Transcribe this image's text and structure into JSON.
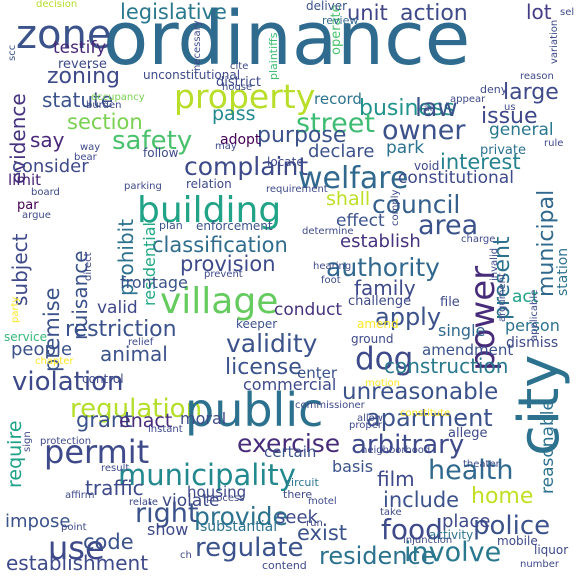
{
  "words": [
    {
      "text": "ordinance",
      "color": "#2f6b8e"
    },
    {
      "text": "zone",
      "color": "#3b528b"
    },
    {
      "text": "legislative",
      "color": "#2a788e"
    },
    {
      "text": "decision",
      "color": "#b5de2b"
    },
    {
      "text": "testify",
      "color": "#482878"
    },
    {
      "text": "zoning",
      "color": "#3e4a89"
    },
    {
      "text": "action",
      "color": "#3e4a89"
    },
    {
      "text": "unit",
      "color": "#414487"
    },
    {
      "text": "lot",
      "color": "#433e85"
    },
    {
      "text": "city",
      "color": "#2c728e"
    },
    {
      "text": "property",
      "color": "#b8de29"
    },
    {
      "text": "business",
      "color": "#21918c"
    },
    {
      "text": "evidence",
      "color": "#46327e"
    },
    {
      "text": "statute",
      "color": "#3b528b"
    },
    {
      "text": "record",
      "color": "#2c728e"
    },
    {
      "text": "law",
      "color": "#3b528b"
    },
    {
      "text": "large",
      "color": "#3e4a89"
    },
    {
      "text": "section",
      "color": "#7ad151"
    },
    {
      "text": "street",
      "color": "#3fbc73"
    },
    {
      "text": "issue",
      "color": "#3f4889"
    },
    {
      "text": "owner",
      "color": "#3b528b"
    },
    {
      "text": "safety",
      "color": "#4ac16d"
    },
    {
      "text": "purpose",
      "color": "#3b528b"
    },
    {
      "text": "general",
      "color": "#2a788e"
    },
    {
      "text": "say",
      "color": "#482878"
    },
    {
      "text": "pass",
      "color": "#23898e"
    },
    {
      "text": "adopt",
      "color": "#440154"
    },
    {
      "text": "park",
      "color": "#2c728e"
    },
    {
      "text": "declare",
      "color": "#3b528b"
    },
    {
      "text": "complaint",
      "color": "#3e4a89"
    },
    {
      "text": "welfare",
      "color": "#31688e"
    },
    {
      "text": "interest",
      "color": "#26828e"
    },
    {
      "text": "consider",
      "color": "#3e4a89"
    },
    {
      "text": "building",
      "color": "#20a386"
    },
    {
      "text": "shall",
      "color": "#bddf26"
    },
    {
      "text": "constitutional",
      "color": "#3e4a89"
    },
    {
      "text": "council",
      "color": "#355f8d"
    },
    {
      "text": "limit",
      "color": "#482475"
    },
    {
      "text": "par",
      "color": "#440154"
    },
    {
      "text": "area",
      "color": "#3b528b"
    },
    {
      "text": "effect",
      "color": "#3b528b"
    },
    {
      "text": "establish",
      "color": "#46327e"
    },
    {
      "text": "classification",
      "color": "#2f6c8e"
    },
    {
      "text": "prohibit",
      "color": "#2c728e"
    },
    {
      "text": "subject",
      "color": "#3e4a89"
    },
    {
      "text": "residential",
      "color": "#22a884"
    },
    {
      "text": "provision",
      "color": "#3e4a89"
    },
    {
      "text": "authority",
      "color": "#31688e"
    },
    {
      "text": "village",
      "color": "#65cb5e"
    },
    {
      "text": "nuisance",
      "color": "#3b528b"
    },
    {
      "text": "premise",
      "color": "#3b528b"
    },
    {
      "text": "municipal",
      "color": "#31688e"
    },
    {
      "text": "power",
      "color": "#472c7a"
    },
    {
      "text": "present",
      "color": "#2c728e"
    },
    {
      "text": "family",
      "color": "#3e4a89"
    },
    {
      "text": "conduct",
      "color": "#46327e"
    },
    {
      "text": "valid",
      "color": "#3f4889"
    },
    {
      "text": "restriction",
      "color": "#3b528b"
    },
    {
      "text": "apply",
      "color": "#3b528b"
    },
    {
      "text": "validity",
      "color": "#3b528b"
    },
    {
      "text": "people",
      "color": "#3b528b"
    },
    {
      "text": "animal",
      "color": "#3b528b"
    },
    {
      "text": "dog",
      "color": "#3e4a89"
    },
    {
      "text": "construction",
      "color": "#2a788e"
    },
    {
      "text": "license",
      "color": "#3b528b"
    },
    {
      "text": "violation",
      "color": "#3e4a89"
    },
    {
      "text": "regulation",
      "color": "#b5de2b"
    },
    {
      "text": "public",
      "color": "#2c728e"
    },
    {
      "text": "unreasonable",
      "color": "#3b528b"
    },
    {
      "text": "apartment",
      "color": "#3b528b"
    },
    {
      "text": "permit",
      "color": "#3e4a89"
    },
    {
      "text": "exercise",
      "color": "#472c7a"
    },
    {
      "text": "arbitrary",
      "color": "#3e4a89"
    },
    {
      "text": "health",
      "color": "#31688e"
    },
    {
      "text": "municipality",
      "color": "#23898e"
    },
    {
      "text": "require",
      "color": "#1fa187"
    },
    {
      "text": "grant",
      "color": "#3b528b"
    },
    {
      "text": "enact",
      "color": "#472c7a"
    },
    {
      "text": "traffic",
      "color": "#3e4a89"
    },
    {
      "text": "right",
      "color": "#3b528b"
    },
    {
      "text": "provide",
      "color": "#2c728e"
    },
    {
      "text": "home",
      "color": "#c2df23"
    },
    {
      "text": "include",
      "color": "#3b528b"
    },
    {
      "text": "police",
      "color": "#3b528b"
    },
    {
      "text": "food",
      "color": "#3e4a89"
    },
    {
      "text": "film",
      "color": "#3e4a89"
    },
    {
      "text": "regulate",
      "color": "#3b528b"
    },
    {
      "text": "use",
      "color": "#3e4a89"
    },
    {
      "text": "code",
      "color": "#3b528b"
    },
    {
      "text": "impose",
      "color": "#3b528b"
    },
    {
      "text": "residence",
      "color": "#2c728e"
    },
    {
      "text": "involve",
      "color": "#2a788e"
    },
    {
      "text": "place",
      "color": "#3e4a89"
    },
    {
      "text": "establishment",
      "color": "#3e4a89"
    },
    {
      "text": "exist",
      "color": "#3b528b"
    },
    {
      "text": "seek",
      "color": "#3e4a89"
    },
    {
      "text": "reasonable",
      "color": "#2c728e"
    },
    {
      "text": "commercial",
      "color": "#3e4a89"
    },
    {
      "text": "person",
      "color": "#2c728e"
    },
    {
      "text": "single",
      "color": "#31688e"
    },
    {
      "text": "housing",
      "color": "#3e4a89"
    },
    {
      "text": "moral",
      "color": "#3e4a89"
    },
    {
      "text": "certain",
      "color": "#3b528b"
    },
    {
      "text": "basis",
      "color": "#3b528b"
    },
    {
      "text": "show",
      "color": "#3e4a89"
    },
    {
      "text": "substantial",
      "color": "#2c728e"
    },
    {
      "text": "violate",
      "color": "#3e4a89"
    },
    {
      "text": "frontage",
      "color": "#3b528b"
    },
    {
      "text": "station",
      "color": "#2c728e"
    },
    {
      "text": "act",
      "color": "#1fa187"
    },
    {
      "text": "amendment",
      "color": "#3b528b"
    },
    {
      "text": "ground",
      "color": "#3e4a89"
    },
    {
      "text": "enter",
      "color": "#3b528b"
    },
    {
      "text": "control",
      "color": "#3e4a89"
    },
    {
      "text": "relation",
      "color": "#3e4a89"
    },
    {
      "text": "enforcement",
      "color": "#3b528b"
    },
    {
      "text": "plan",
      "color": "#3b528b"
    },
    {
      "text": "district",
      "color": "#3e4a89"
    },
    {
      "text": "unconstitutional",
      "color": "#3e4a89"
    },
    {
      "text": "follow",
      "color": "#3e4a89"
    },
    {
      "text": "locate",
      "color": "#3e4a89"
    },
    {
      "text": "private",
      "color": "#2c728e"
    },
    {
      "text": "void",
      "color": "#3e4a89"
    },
    {
      "text": "challenge",
      "color": "#3e4a89"
    },
    {
      "text": "file",
      "color": "#3e4a89"
    },
    {
      "text": "dismiss",
      "color": "#3e4a89"
    },
    {
      "text": "keeper",
      "color": "#3b528b"
    },
    {
      "text": "amend",
      "color": "#fde725"
    },
    {
      "text": "service",
      "color": "#35b779"
    },
    {
      "text": "allege",
      "color": "#3e4a89"
    },
    {
      "text": "circuit",
      "color": "#2c728e"
    },
    {
      "text": "take",
      "color": "#3e4a89"
    },
    {
      "text": "mobile",
      "color": "#3e4a89"
    },
    {
      "text": "activity",
      "color": "#2c728e"
    },
    {
      "text": "operate",
      "color": "#4ac16d"
    },
    {
      "text": "deliver",
      "color": "#3b528b"
    },
    {
      "text": "review",
      "color": "#31688e"
    },
    {
      "text": "cite",
      "color": "#3e4a89"
    },
    {
      "text": "house",
      "color": "#3e4a89"
    },
    {
      "text": "reverse",
      "color": "#3e4a89"
    },
    {
      "text": "burden",
      "color": "#3e4a89"
    },
    {
      "text": "occupancy",
      "color": "#7ad151"
    },
    {
      "text": "reason",
      "color": "#3e4a89"
    },
    {
      "text": "deny",
      "color": "#3e4a89"
    },
    {
      "text": "appear",
      "color": "#3e4a89"
    },
    {
      "text": "fail",
      "color": "#3e4a89"
    },
    {
      "text": "necessary",
      "color": "#3e4a89"
    },
    {
      "text": "plaintiffs",
      "color": "#3fbc73"
    },
    {
      "text": "variation",
      "color": "#3e4a89"
    },
    {
      "text": "sel",
      "color": "#3e4a89"
    },
    {
      "text": "scc",
      "color": "#3b528b"
    },
    {
      "text": "way",
      "color": "#3e4a89"
    },
    {
      "text": "bear",
      "color": "#3e4a89"
    },
    {
      "text": "board",
      "color": "#3e4a89"
    },
    {
      "text": "argue",
      "color": "#3e4a89"
    },
    {
      "text": "parking",
      "color": "#3e4a89"
    },
    {
      "text": "requirement",
      "color": "#3e4a89"
    },
    {
      "text": "determine",
      "color": "#3e4a89"
    },
    {
      "text": "hearing",
      "color": "#3e4a89"
    },
    {
      "text": "foot",
      "color": "#3e4a89"
    },
    {
      "text": "charge",
      "color": "#3e4a89"
    },
    {
      "text": "argument",
      "color": "#3e4a89"
    },
    {
      "text": "invalid",
      "color": "#3e4a89"
    },
    {
      "text": "applicable",
      "color": "#3e4a89"
    },
    {
      "text": "motion",
      "color": "#fde725"
    },
    {
      "text": "commissioner",
      "color": "#3e4a89"
    },
    {
      "text": "proper",
      "color": "#3e4a89"
    },
    {
      "text": "neighborhood",
      "color": "#3e4a89"
    },
    {
      "text": "constitute",
      "color": "#fde725"
    },
    {
      "text": "theater",
      "color": "#3e4a89"
    },
    {
      "text": "protection",
      "color": "#3e4a89"
    },
    {
      "text": "instant",
      "color": "#3e4a89"
    },
    {
      "text": "result",
      "color": "#3e4a89"
    },
    {
      "text": "affirm",
      "color": "#3e4a89"
    },
    {
      "text": "process",
      "color": "#3e4a89"
    },
    {
      "text": "motel",
      "color": "#3e4a89"
    },
    {
      "text": "injunction",
      "color": "#3e4a89"
    },
    {
      "text": "liquor",
      "color": "#3e4a89"
    },
    {
      "text": "number",
      "color": "#3e4a89"
    },
    {
      "text": "contend",
      "color": "#3e4a89"
    },
    {
      "text": "relief",
      "color": "#3e4a89"
    },
    {
      "text": "chapter",
      "color": "#fde725"
    },
    {
      "text": "party",
      "color": "#fde725"
    },
    {
      "text": "direct",
      "color": "#3e4a89"
    },
    {
      "text": "prevent",
      "color": "#3e4a89"
    },
    {
      "text": "allow",
      "color": "#3e4a89"
    },
    {
      "text": "comply",
      "color": "#3e4a89"
    },
    {
      "text": "relate",
      "color": "#3e4a89"
    },
    {
      "text": "point",
      "color": "#3e4a89"
    },
    {
      "text": "rule",
      "color": "#3e4a89"
    },
    {
      "text": "us",
      "color": "#3e4a89"
    },
    {
      "text": "run",
      "color": "#3e4a89"
    },
    {
      "text": "there",
      "color": "#3e4a89"
    },
    {
      "text": "sign",
      "color": "#3e4a89"
    },
    {
      "text": "ch",
      "color": "#3e4a89"
    },
    {
      "text": "may",
      "color": "#3e4a89"
    }
  ]
}
